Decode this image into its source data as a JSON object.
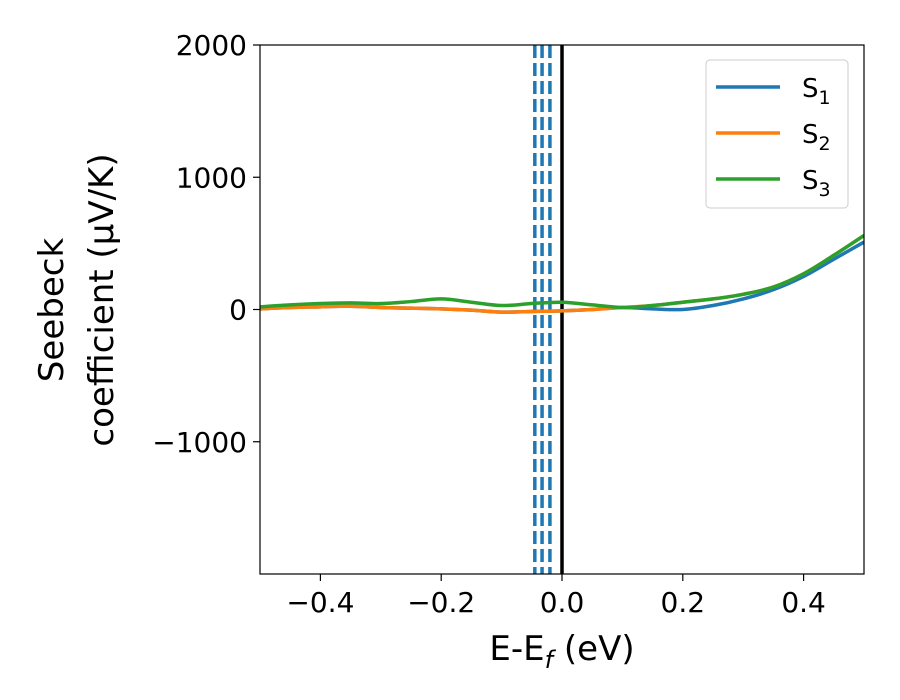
{
  "chart_data": {
    "type": "line",
    "xlabel": "E-E_f (eV)",
    "xlabel_main": "E-E",
    "xlabel_sub": "f",
    "xlabel_tail": " (eV)",
    "ylabel_line1": "Seebeck",
    "ylabel_line2": "coefficient  (μV/K)",
    "xlim": [
      -0.5,
      0.5
    ],
    "ylim": [
      -2000,
      2000
    ],
    "x_ticks": [
      -0.4,
      -0.2,
      0.0,
      0.2,
      0.4
    ],
    "x_tick_labels": [
      "−0.4",
      "−0.2",
      "0.0",
      "0.2",
      "0.4"
    ],
    "y_ticks": [
      -1000,
      0,
      1000,
      2000
    ],
    "y_tick_labels": [
      "−1000",
      "0",
      "1000",
      "2000"
    ],
    "grid": false,
    "legend_position": "top-right",
    "vertical_lines": [
      {
        "x": -0.045,
        "style": "dashed",
        "color": "#1f77b4"
      },
      {
        "x": -0.033,
        "style": "dashed",
        "color": "#1f77b4"
      },
      {
        "x": -0.02,
        "style": "dashed",
        "color": "#1f77b4"
      },
      {
        "x": 0.0,
        "style": "solid",
        "color": "#000000"
      }
    ],
    "series": [
      {
        "name": "S_1",
        "label_main": "S",
        "label_sub": "1",
        "color": "#1f77b4",
        "x": [
          -0.5,
          -0.45,
          -0.4,
          -0.35,
          -0.3,
          -0.25,
          -0.2,
          -0.15,
          -0.1,
          -0.05,
          0.0,
          0.05,
          0.1,
          0.15,
          0.2,
          0.25,
          0.3,
          0.35,
          0.4,
          0.45,
          0.5
        ],
        "y": [
          5,
          15,
          20,
          25,
          15,
          10,
          5,
          -5,
          -20,
          -15,
          -10,
          0,
          15,
          5,
          0,
          30,
          80,
          150,
          250,
          380,
          510
        ]
      },
      {
        "name": "S_2",
        "label_main": "S",
        "label_sub": "2",
        "color": "#ff7f0e",
        "x": [
          -0.5,
          -0.45,
          -0.4,
          -0.35,
          -0.3,
          -0.25,
          -0.2,
          -0.15,
          -0.1,
          -0.05,
          0.0,
          0.05,
          0.1,
          0.15,
          0.2,
          0.25,
          0.3,
          0.35,
          0.4,
          0.45,
          0.5
        ],
        "y": [
          5,
          15,
          20,
          25,
          15,
          10,
          5,
          -5,
          -20,
          -15,
          -10,
          0,
          15,
          30,
          55,
          80,
          115,
          170,
          270,
          410,
          560
        ]
      },
      {
        "name": "S_3",
        "label_main": "S",
        "label_sub": "3",
        "color": "#2ca02c",
        "x": [
          -0.5,
          -0.45,
          -0.4,
          -0.35,
          -0.3,
          -0.25,
          -0.2,
          -0.15,
          -0.1,
          -0.05,
          0.0,
          0.05,
          0.1,
          0.15,
          0.2,
          0.25,
          0.3,
          0.35,
          0.4,
          0.45,
          0.5
        ],
        "y": [
          20,
          35,
          45,
          50,
          45,
          60,
          80,
          55,
          30,
          45,
          55,
          35,
          15,
          30,
          55,
          80,
          115,
          170,
          270,
          410,
          560
        ]
      }
    ]
  }
}
